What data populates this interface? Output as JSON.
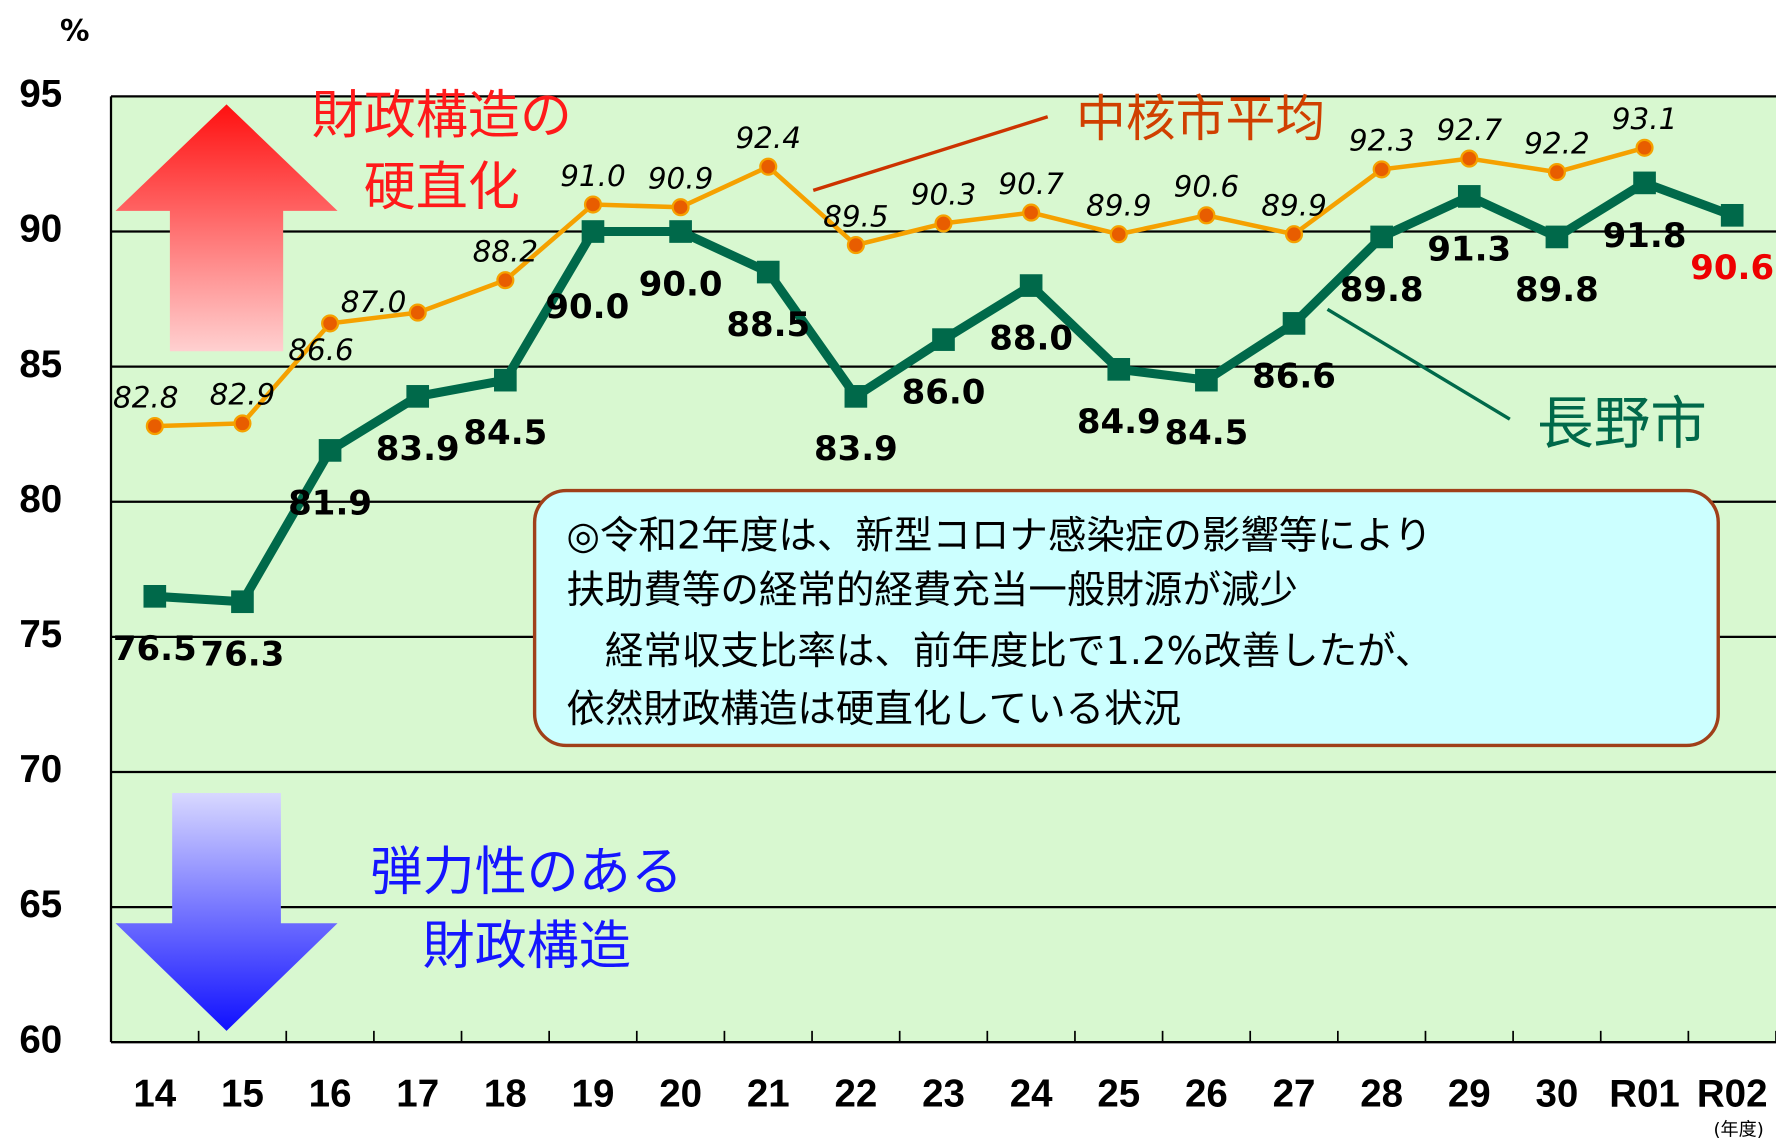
{
  "chart_data": {
    "type": "line",
    "ylabel": "%",
    "xlabel": "(年度)",
    "categories": [
      "14",
      "15",
      "16",
      "17",
      "18",
      "19",
      "20",
      "21",
      "22",
      "23",
      "24",
      "25",
      "26",
      "27",
      "28",
      "29",
      "30",
      "R01",
      "R02"
    ],
    "series": [
      {
        "name": "中核市平均",
        "color": "#f5a100",
        "marker_color": "#e85d00",
        "values": [
          82.8,
          82.9,
          86.6,
          87.0,
          88.2,
          91.0,
          90.9,
          92.4,
          89.5,
          90.3,
          90.7,
          89.9,
          90.6,
          89.9,
          92.3,
          92.7,
          92.2,
          93.1,
          null
        ],
        "value_labels": [
          "82.8",
          "82.9",
          "86.6",
          "87.0",
          "88.2",
          "91.0",
          "90.9",
          "92.4",
          "89.5",
          "90.3",
          "90.7",
          "89.9",
          "90.6",
          "89.9",
          "92.3",
          "92.7",
          "92.2",
          "93.1",
          null
        ]
      },
      {
        "name": "長野市",
        "color": "#00694a",
        "marker_color": "#00694a",
        "highlight_label_color": "#ee0000",
        "values": [
          76.5,
          76.3,
          81.9,
          83.9,
          84.5,
          90.0,
          90.0,
          88.5,
          83.9,
          86.0,
          88.0,
          84.9,
          84.5,
          86.6,
          89.8,
          91.3,
          89.8,
          91.8,
          90.6
        ],
        "value_labels": [
          "76.5",
          "76.3",
          "81.9",
          "83.9",
          "84.5",
          "90.0",
          "90.0",
          "88.5",
          "83.9",
          "86.0",
          "88.0",
          "84.9",
          "84.5",
          "86.6",
          "89.8",
          "91.3",
          "89.8",
          "91.8",
          "90.6"
        ]
      }
    ],
    "ylim": [
      60,
      95
    ],
    "yticks": [
      60,
      65,
      70,
      75,
      80,
      85,
      90,
      95
    ],
    "grid": true,
    "annotations": {
      "rigid": [
        "財政構造の",
        "硬直化"
      ],
      "flexible": [
        "弾力性のある",
        "財政構造"
      ],
      "note": [
        "◎令和2年度は、新型コロナ感染症の影響等により",
        "扶助費等の経常的経費充当一般財源が減少",
        "　経常収支比率は、前年度比で1.2%改善したが、",
        "依然財政構造は硬直化している状況"
      ]
    }
  }
}
